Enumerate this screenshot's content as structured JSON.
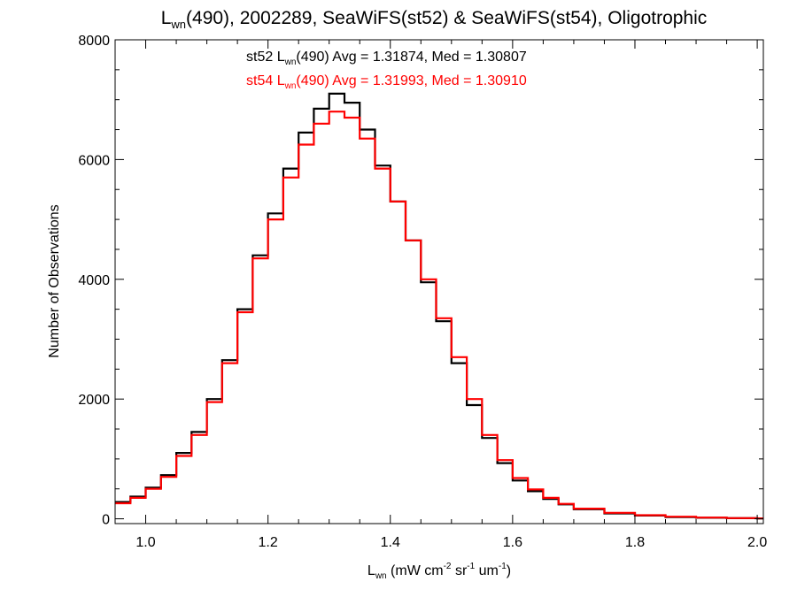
{
  "chart_data": {
    "type": "line",
    "step": true,
    "title": {
      "base": "L",
      "sub": "wn",
      "rest": "(490), 2002289, SeaWiFS(st52) & SeaWiFS(st54), Oligotrophic"
    },
    "xlabel": {
      "base": "L",
      "sub": "wn",
      "p1": " (mW cm",
      "sup1": "-2",
      "p2": " sr",
      "sup2": "-1",
      "p3": " um",
      "sup3": "-1",
      "p4": ")"
    },
    "ylabel": "Number of Observations",
    "xlim": [
      0.95,
      2.01
    ],
    "ylim": [
      -80,
      8000
    ],
    "xticks": [
      "1.0",
      "1.2",
      "1.4",
      "1.6",
      "1.8",
      "2.0"
    ],
    "yticks": [
      "0",
      "2000",
      "4000",
      "6000",
      "8000"
    ],
    "grid": false,
    "legend": "top-center",
    "series": [
      {
        "name": "st52",
        "color": "#000000",
        "annotation": {
          "prefix": "st52 L",
          "sub": "wn",
          "rest": "(490) Avg = 1.31874, Med = 1.30807"
        },
        "points": [
          [
            0.95,
            280
          ],
          [
            0.975,
            370
          ],
          [
            1.0,
            520
          ],
          [
            1.025,
            730
          ],
          [
            1.05,
            1100
          ],
          [
            1.075,
            1450
          ],
          [
            1.1,
            2000
          ],
          [
            1.125,
            2650
          ],
          [
            1.15,
            3500
          ],
          [
            1.175,
            4400
          ],
          [
            1.2,
            5100
          ],
          [
            1.225,
            5850
          ],
          [
            1.25,
            6450
          ],
          [
            1.275,
            6850
          ],
          [
            1.3,
            7100
          ],
          [
            1.325,
            6950
          ],
          [
            1.35,
            6500
          ],
          [
            1.375,
            5900
          ],
          [
            1.4,
            5300
          ],
          [
            1.425,
            4650
          ],
          [
            1.45,
            3950
          ],
          [
            1.475,
            3300
          ],
          [
            1.5,
            2600
          ],
          [
            1.525,
            1900
          ],
          [
            1.55,
            1350
          ],
          [
            1.575,
            930
          ],
          [
            1.6,
            640
          ],
          [
            1.625,
            460
          ],
          [
            1.65,
            330
          ],
          [
            1.675,
            240
          ],
          [
            1.7,
            160
          ],
          [
            1.75,
            90
          ],
          [
            1.8,
            55
          ],
          [
            1.85,
            30
          ],
          [
            1.9,
            18
          ],
          [
            1.95,
            10
          ],
          [
            2.0,
            5
          ]
        ]
      },
      {
        "name": "st54",
        "color": "#ff0000",
        "annotation": {
          "prefix": "st54 L",
          "sub": "wn",
          "rest": "(490) Avg = 1.31993, Med = 1.30910"
        },
        "points": [
          [
            0.95,
            260
          ],
          [
            0.975,
            350
          ],
          [
            1.0,
            500
          ],
          [
            1.025,
            700
          ],
          [
            1.05,
            1050
          ],
          [
            1.075,
            1400
          ],
          [
            1.1,
            1950
          ],
          [
            1.125,
            2600
          ],
          [
            1.15,
            3450
          ],
          [
            1.175,
            4350
          ],
          [
            1.2,
            5000
          ],
          [
            1.225,
            5700
          ],
          [
            1.25,
            6250
          ],
          [
            1.275,
            6600
          ],
          [
            1.3,
            6800
          ],
          [
            1.325,
            6700
          ],
          [
            1.35,
            6350
          ],
          [
            1.375,
            5850
          ],
          [
            1.4,
            5300
          ],
          [
            1.425,
            4650
          ],
          [
            1.45,
            4000
          ],
          [
            1.475,
            3350
          ],
          [
            1.5,
            2700
          ],
          [
            1.525,
            2000
          ],
          [
            1.55,
            1400
          ],
          [
            1.575,
            980
          ],
          [
            1.6,
            680
          ],
          [
            1.625,
            490
          ],
          [
            1.65,
            350
          ],
          [
            1.675,
            250
          ],
          [
            1.7,
            170
          ],
          [
            1.75,
            100
          ],
          [
            1.8,
            60
          ],
          [
            1.85,
            35
          ],
          [
            1.9,
            20
          ],
          [
            1.95,
            12
          ],
          [
            2.0,
            6
          ]
        ]
      }
    ]
  }
}
